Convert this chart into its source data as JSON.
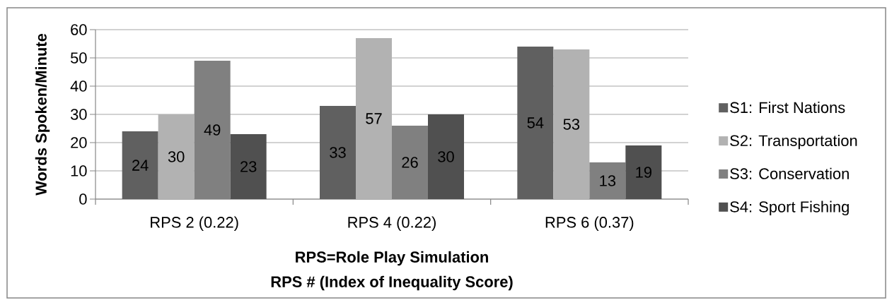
{
  "chart_data": {
    "type": "bar",
    "xlabel": "RPS # (Index of Inequality Score)",
    "ylabel": "Words Spoken/Minute",
    "annotations": [
      "RPS=Role Play Simulation"
    ],
    "categories": [
      "RPS 2 (0.22)",
      "RPS 4 (0.22)",
      "RPS 6 (0.37)"
    ],
    "series": [
      {
        "name": "S1: First Nations",
        "color": "#606060",
        "values": [
          24,
          33,
          54
        ]
      },
      {
        "name": "S2: Transportation",
        "color": "#b2b2b2",
        "values": [
          30,
          57,
          53
        ]
      },
      {
        "name": "S3: Conservation",
        "color": "#808080",
        "values": [
          49,
          26,
          13
        ]
      },
      {
        "name": "S4: Sport Fishing",
        "color": "#505050",
        "values": [
          23,
          30,
          19
        ]
      }
    ],
    "ylim": [
      0,
      60
    ],
    "yticks": [
      0,
      10,
      20,
      30,
      40,
      50,
      60
    ],
    "grid": "y",
    "legend": "right",
    "data_labels": true
  }
}
